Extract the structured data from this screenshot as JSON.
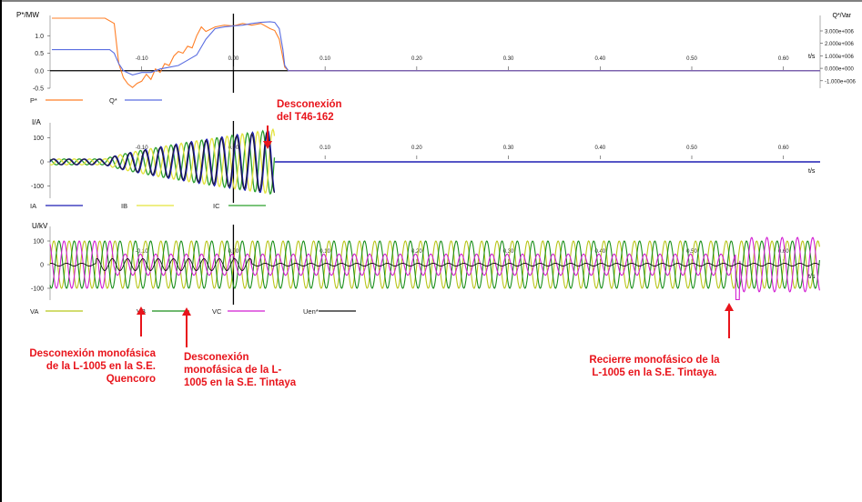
{
  "chart_data": [
    {
      "type": "line",
      "ylabel": "P*/MW",
      "ylabel_right": "Q*/Var",
      "xlabel": "t/s",
      "xlim": [
        -0.2,
        0.64
      ],
      "ylim": [
        -0.5,
        1.5
      ],
      "x_ticks": [
        "-0.10",
        "0.00",
        "0.10",
        "0.20",
        "0.30",
        "0.40",
        "0.50",
        "0.60"
      ],
      "y_ticks": [
        "1.0",
        "0.5",
        "0.0",
        "-0.5"
      ],
      "y2_ticks": [
        "3.000e+006",
        "2.000e+006",
        "1.000e+006",
        "0.000e+000",
        "-1.000e+006"
      ],
      "series": [
        {
          "name": "P*",
          "color": "#ff7f27",
          "x": [
            -0.198,
            -0.17,
            -0.14,
            -0.13,
            -0.125,
            -0.12,
            -0.115,
            -0.11,
            -0.105,
            -0.1,
            -0.095,
            -0.09,
            -0.085,
            -0.08,
            -0.075,
            -0.07,
            -0.065,
            -0.06,
            -0.055,
            -0.05,
            -0.045,
            -0.04,
            -0.035,
            -0.03,
            -0.02,
            -0.01,
            0.0,
            0.01,
            0.02,
            0.03,
            0.04,
            0.045,
            0.05,
            0.053,
            0.056,
            0.06,
            0.64
          ],
          "y": [
            1.5,
            1.5,
            1.5,
            1.35,
            0.2,
            -0.2,
            -0.38,
            -0.48,
            -0.36,
            -0.3,
            -0.1,
            -0.25,
            0.05,
            -0.05,
            0.2,
            0.15,
            0.42,
            0.55,
            0.5,
            0.7,
            0.65,
            1.0,
            1.25,
            1.12,
            1.25,
            1.3,
            1.28,
            1.35,
            1.3,
            1.35,
            1.2,
            1.15,
            0.9,
            0.5,
            0.1,
            0.0,
            0.0
          ]
        },
        {
          "name": "Q*",
          "color": "#5b6ee1",
          "x": [
            -0.198,
            -0.15,
            -0.135,
            -0.13,
            -0.125,
            -0.12,
            -0.11,
            -0.1,
            -0.09,
            -0.08,
            -0.07,
            -0.06,
            -0.05,
            -0.04,
            -0.03,
            -0.02,
            -0.01,
            0.0,
            0.01,
            0.02,
            0.03,
            0.04,
            0.045,
            0.05,
            0.054,
            0.056,
            0.06,
            0.64
          ],
          "y": [
            0.6,
            0.6,
            0.6,
            0.5,
            0.2,
            0.0,
            -0.12,
            -0.05,
            -0.05,
            0.05,
            0.1,
            0.15,
            0.3,
            0.45,
            0.9,
            1.2,
            1.25,
            1.28,
            1.3,
            1.35,
            1.38,
            1.4,
            1.38,
            1.2,
            0.6,
            0.15,
            0.0,
            0.0
          ]
        }
      ]
    },
    {
      "type": "line",
      "ylabel": "I/A",
      "xlabel": "t/s",
      "xlim": [
        -0.2,
        0.64
      ],
      "ylim": [
        -150,
        150
      ],
      "x_ticks": [
        "-0.10",
        "0.00",
        "0.10",
        "0.20",
        "0.30",
        "0.40",
        "0.50",
        "0.60"
      ],
      "y_ticks": [
        "100",
        "0",
        "-100"
      ],
      "waveform": {
        "frequency_hz": 60,
        "trip_time_s": 0.045,
        "pre_fault_amplitude_a": 12,
        "fault_start_s": -0.14,
        "peak_amplitude_a": 135
      },
      "series": [
        {
          "name": "IA",
          "color": "#1f1fb4"
        },
        {
          "name": "IB",
          "color": "#e3e33b"
        },
        {
          "name": "IC",
          "color": "#2ca02c"
        }
      ]
    },
    {
      "type": "line",
      "ylabel": "U/kV",
      "xlabel": "t/s",
      "xlim": [
        -0.2,
        0.64
      ],
      "ylim": [
        -150,
        150
      ],
      "x_ticks": [
        "-0.10",
        "0.00",
        "0.10",
        "0.20",
        "0.30",
        "0.40",
        "0.50",
        "0.60"
      ],
      "y_ticks": [
        "100",
        "0",
        "-100"
      ],
      "waveform": {
        "frequency_hz": 60,
        "nominal_amplitude_kv": 100,
        "reclose_time_s": 0.55
      },
      "series": [
        {
          "name": "VA",
          "color": "#b8c61a"
        },
        {
          "name": "VB",
          "color": "#1a8f1a"
        },
        {
          "name": "VC",
          "color": "#d21fd2"
        },
        {
          "name": "Uen*",
          "color": "#111111"
        }
      ]
    }
  ],
  "annotations": {
    "t46": {
      "line1": "Desconexión",
      "line2": "del T46-162"
    },
    "quencoro": {
      "line1": "Desconexión monofásica",
      "line2": "de la L-1005 en la S.E.",
      "line3": "Quencoro"
    },
    "tintaya_open": {
      "line1": "Desconexión",
      "line2": "monofásica de la L-",
      "line3": "1005 en la S.E. Tintaya"
    },
    "reclose": {
      "line1": "Recierre monofásico de la",
      "line2": "L-1005 en la S.E. Tintaya."
    }
  },
  "colors": {
    "annotation_red": "#e8141b",
    "frame": "#000000",
    "trace_red": "#c00000"
  }
}
